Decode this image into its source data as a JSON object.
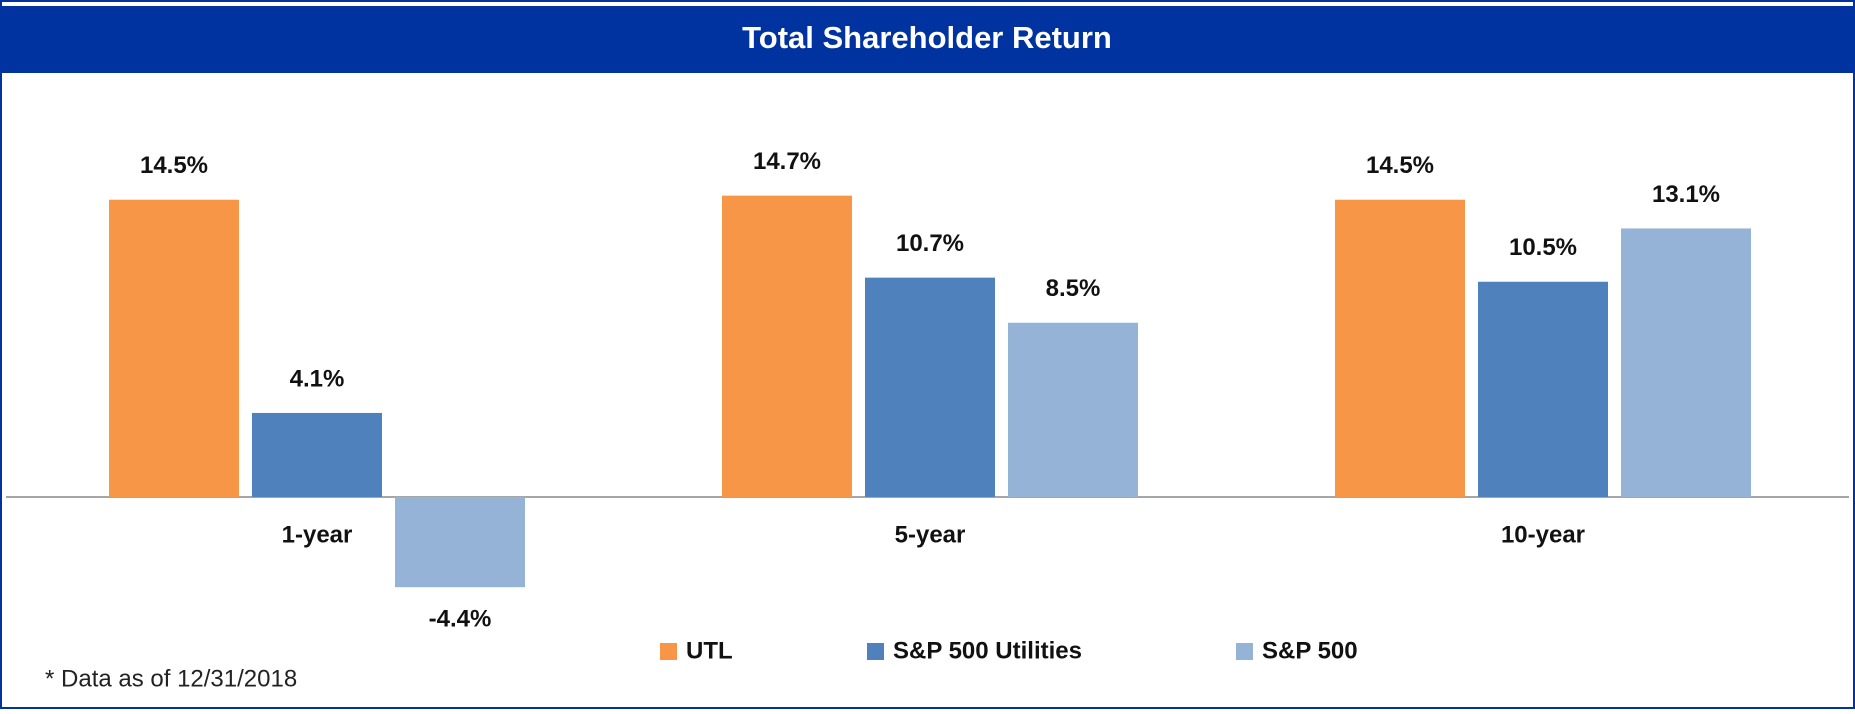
{
  "chart_data": {
    "type": "bar",
    "title": "Total Shareholder Return",
    "categories": [
      "1-year",
      "5-year",
      "10-year"
    ],
    "series": [
      {
        "name": "UTL",
        "color": "#f79646",
        "values": [
          14.5,
          14.7,
          14.5
        ],
        "value_labels": [
          "14.5%",
          "14.7%",
          "14.5%"
        ]
      },
      {
        "name": "S&P 500 Utilities",
        "color": "#4f81bd",
        "values": [
          4.1,
          10.7,
          10.5
        ],
        "value_labels": [
          "4.1%",
          "10.7%",
          "10.5%"
        ]
      },
      {
        "name": "S&P 500",
        "color": "#95b3d7",
        "values": [
          -4.4,
          8.5,
          13.1
        ],
        "value_labels": [
          "-4.4%",
          "8.5%",
          "13.1%"
        ]
      }
    ],
    "legend": "bottom",
    "footnote": "* Data as of 12/31/2018"
  }
}
